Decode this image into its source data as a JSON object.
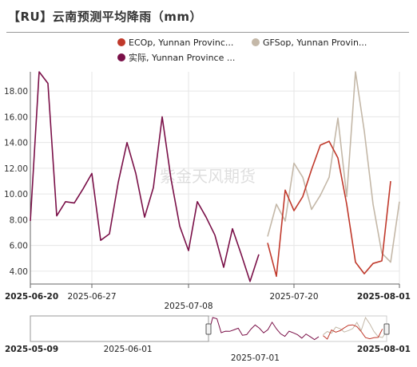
{
  "title": "【RU】云南预测平均降雨（mm）",
  "watermark": "紫金天风期货",
  "colors": {
    "ecop": "#c0392b",
    "gfsop": "#c4b8a8",
    "actual": "#7a1048"
  },
  "chart_data": {
    "type": "line",
    "title": "【RU】云南预测平均降雨（mm）",
    "xlabel": "",
    "ylabel": "",
    "ylim": [
      3.0,
      19.5
    ],
    "xlim": [
      "2025-06-20",
      "2025-08-01"
    ],
    "legend_position": "top-right",
    "grid": true,
    "y_ticks": [
      "18.00",
      "16.00",
      "14.00",
      "12.00",
      "10.00",
      "8.00",
      "6.00",
      "4.00"
    ],
    "y_tick_values": [
      18,
      16,
      14,
      12,
      10,
      8,
      6,
      4
    ],
    "x_ticks": [
      {
        "label": "2025-06-20",
        "date": "2025-06-20",
        "bold": true,
        "row": 0
      },
      {
        "label": "2025-06-27",
        "date": "2025-06-27",
        "bold": false,
        "row": 0
      },
      {
        "label": "2025-07-08",
        "date": "2025-07-08",
        "bold": false,
        "row": 1
      },
      {
        "label": "2025-07-20",
        "date": "2025-07-20",
        "bold": false,
        "row": 0
      },
      {
        "label": "2025-08-01",
        "date": "2025-08-01",
        "bold": true,
        "row": 0
      }
    ],
    "series": [
      {
        "name": "实际, Yunnan Province ...",
        "color_key": "actual",
        "points": [
          [
            "2025-06-20",
            7.9
          ],
          [
            "2025-06-21",
            19.5
          ],
          [
            "2025-06-22",
            18.6
          ],
          [
            "2025-06-23",
            8.3
          ],
          [
            "2025-06-24",
            9.4
          ],
          [
            "2025-06-25",
            9.3
          ],
          [
            "2025-06-26",
            10.4
          ],
          [
            "2025-06-27",
            11.6
          ],
          [
            "2025-06-28",
            6.4
          ],
          [
            "2025-06-29",
            6.9
          ],
          [
            "2025-06-30",
            10.9
          ],
          [
            "2025-07-01",
            14.0
          ],
          [
            "2025-07-02",
            11.6
          ],
          [
            "2025-07-03",
            8.2
          ],
          [
            "2025-07-04",
            10.5
          ],
          [
            "2025-07-05",
            16.0
          ],
          [
            "2025-07-06",
            11.2
          ],
          [
            "2025-07-07",
            7.5
          ],
          [
            "2025-07-08",
            5.6
          ],
          [
            "2025-07-09",
            9.4
          ],
          [
            "2025-07-10",
            8.2
          ],
          [
            "2025-07-11",
            6.8
          ],
          [
            "2025-07-12",
            4.3
          ],
          [
            "2025-07-13",
            7.3
          ],
          [
            "2025-07-14",
            5.3
          ],
          [
            "2025-07-15",
            3.2
          ],
          [
            "2025-07-16",
            5.3
          ]
        ]
      },
      {
        "name": "GFSop, Yunnan Provin...",
        "color_key": "gfsop",
        "points": [
          [
            "2025-07-17",
            6.7
          ],
          [
            "2025-07-18",
            9.2
          ],
          [
            "2025-07-19",
            7.9
          ],
          [
            "2025-07-20",
            12.4
          ],
          [
            "2025-07-21",
            11.3
          ],
          [
            "2025-07-22",
            8.8
          ],
          [
            "2025-07-23",
            9.9
          ],
          [
            "2025-07-24",
            11.3
          ],
          [
            "2025-07-25",
            15.9
          ],
          [
            "2025-07-26",
            9.8
          ],
          [
            "2025-07-27",
            19.5
          ],
          [
            "2025-07-28",
            14.9
          ],
          [
            "2025-07-29",
            9.2
          ],
          [
            "2025-07-30",
            5.4
          ],
          [
            "2025-07-31",
            4.7
          ],
          [
            "2025-08-01",
            9.4
          ]
        ]
      },
      {
        "name": "ECOp, Yunnan Provinc...",
        "color_key": "ecop",
        "points": [
          [
            "2025-07-17",
            6.2
          ],
          [
            "2025-07-18",
            3.6
          ],
          [
            "2025-07-19",
            10.3
          ],
          [
            "2025-07-20",
            8.7
          ],
          [
            "2025-07-21",
            9.8
          ],
          [
            "2025-07-22",
            11.9
          ],
          [
            "2025-07-23",
            13.8
          ],
          [
            "2025-07-24",
            14.1
          ],
          [
            "2025-07-25",
            12.8
          ],
          [
            "2025-07-26",
            9.2
          ],
          [
            "2025-07-27",
            4.7
          ],
          [
            "2025-07-28",
            3.8
          ],
          [
            "2025-07-29",
            4.6
          ],
          [
            "2025-07-30",
            4.8
          ],
          [
            "2025-07-31",
            11.0
          ]
        ]
      }
    ]
  },
  "legend": [
    {
      "label": "ECOp, Yunnan Provinc...",
      "color_key": "ecop"
    },
    {
      "label": "GFSop, Yunnan Provin...",
      "color_key": "gfsop"
    },
    {
      "label": "实际, Yunnan Province ...",
      "color_key": "actual"
    }
  ],
  "navigator": {
    "range_start": "2025-05-09",
    "range_end": "2025-08-01",
    "ticks": [
      {
        "label": "2025-05-09",
        "date": "2025-05-09",
        "bold": true,
        "row": 0
      },
      {
        "label": "2025-06-01",
        "date": "2025-06-01",
        "bold": false,
        "row": 0
      },
      {
        "label": "2025-07-01",
        "date": "2025-07-01",
        "bold": false,
        "row": 1
      },
      {
        "label": "2025-08-01",
        "date": "2025-08-01",
        "bold": true,
        "row": 0
      }
    ]
  }
}
